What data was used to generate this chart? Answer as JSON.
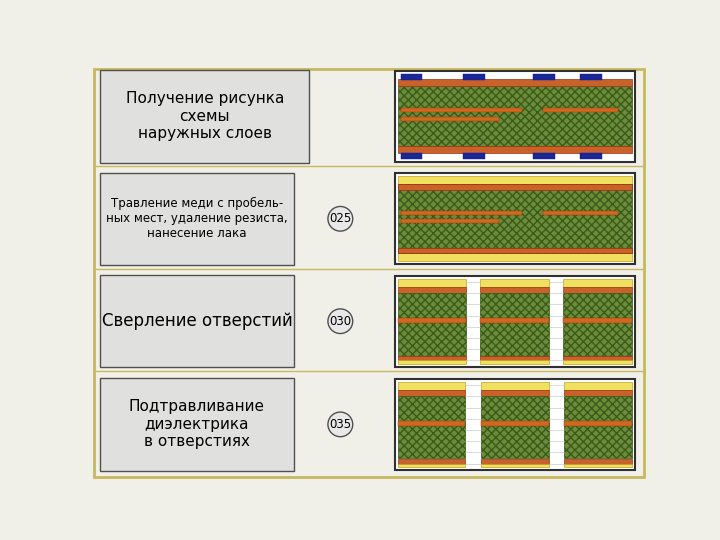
{
  "bg_color": "#f0efe8",
  "border_color": "#c8b860",
  "colors": {
    "green_dielectric": "#6b8c3a",
    "copper": "#c8622a",
    "blue_resist": "#1a2896",
    "yellow_substrate": "#f0e060",
    "white": "#ffffff",
    "orange_copper": "#d06820",
    "light_yellow": "#f0e060",
    "text_box_bg": "#e0e0e0",
    "dark_outline": "#303030",
    "hatch_dark": "#3a5a18"
  },
  "rows": [
    {
      "text": "Получение рисунка\nсхемы\nнаружных слоев",
      "label": null,
      "type": "resist"
    },
    {
      "text": "Травление меди с пробель-\nных мест, удаление резиста,\nнанесение лака",
      "label": "025",
      "type": "etched"
    },
    {
      "text": "Сверление отверстий",
      "label": "030",
      "type": "drilled"
    },
    {
      "text": "Подтравливание\nдиэлектрика\nв отверстиях",
      "label": "035",
      "type": "undercut"
    }
  ]
}
